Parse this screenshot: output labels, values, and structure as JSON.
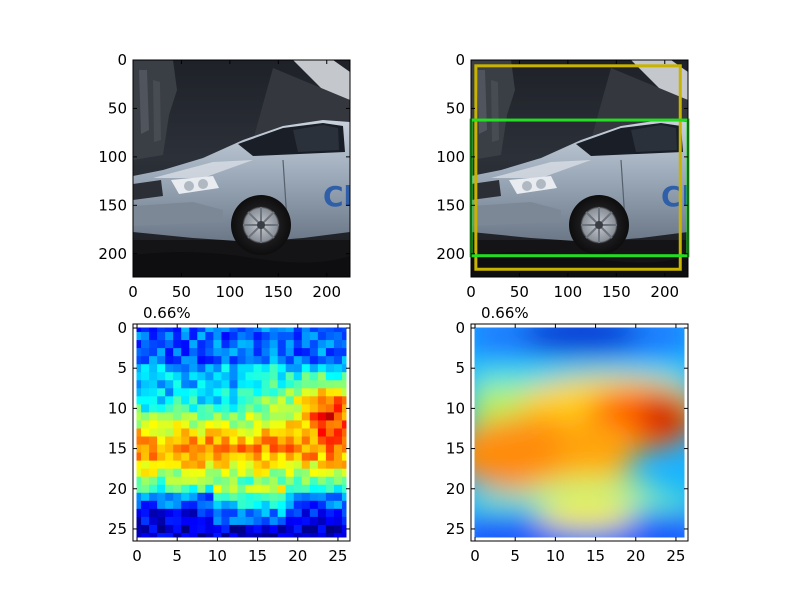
{
  "chart_data": [
    {
      "type": "image",
      "panel": "top-left",
      "content": "silver sedan car photograph",
      "title": "",
      "xlim": [
        0,
        224
      ],
      "ylim": [
        224,
        0
      ],
      "xticks": [
        0,
        50,
        100,
        150,
        200
      ],
      "yticks": [
        0,
        50,
        100,
        150,
        200
      ],
      "grid": false
    },
    {
      "type": "image",
      "panel": "top-right",
      "content": "same car photograph with bounding boxes",
      "title": "",
      "xlim": [
        0,
        224
      ],
      "ylim": [
        224,
        0
      ],
      "xticks": [
        0,
        50,
        100,
        150,
        200
      ],
      "yticks": [
        0,
        50,
        100,
        150,
        200
      ],
      "boxes": [
        {
          "color": "#c8b400",
          "x0": 5,
          "y0": 6,
          "x1": 216,
          "y1": 216
        },
        {
          "color": "#22dd22",
          "x0": 0,
          "y0": 62,
          "x1": 224,
          "y1": 202
        }
      ],
      "grid": false
    },
    {
      "type": "heatmap",
      "panel": "bottom-left",
      "colormap": "jet",
      "interpolation": "nearest",
      "title": "0.66%",
      "xlim": [
        -0.5,
        26.5
      ],
      "ylim": [
        26.5,
        -0.5
      ],
      "xticks": [
        0,
        5,
        10,
        15,
        20,
        25
      ],
      "yticks": [
        0,
        5,
        10,
        15,
        20,
        25
      ],
      "grid": false
    },
    {
      "type": "heatmap",
      "panel": "bottom-right",
      "colormap": "jet",
      "interpolation": "smooth",
      "title": "0.66%",
      "xlim": [
        -0.5,
        26.5
      ],
      "ylim": [
        26.5,
        -0.5
      ],
      "xticks": [
        0,
        5,
        10,
        15,
        20,
        25
      ],
      "yticks": [
        0,
        5,
        10,
        15,
        20,
        25
      ],
      "grid": false
    }
  ]
}
